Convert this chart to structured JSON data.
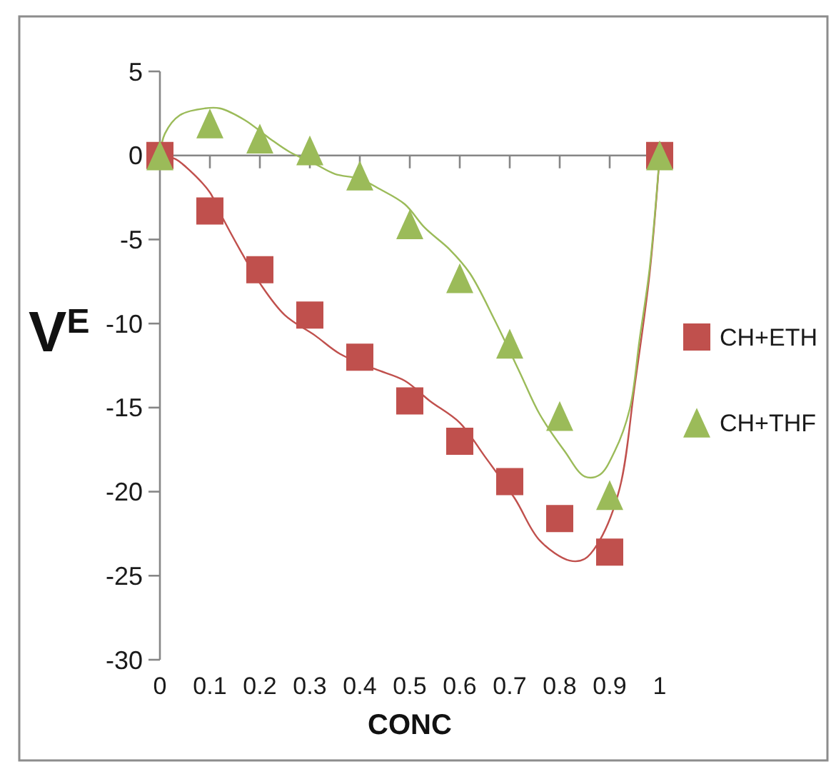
{
  "chart_data": {
    "type": "scatter",
    "xlabel": "CONC",
    "ylabel": "V$^{E}$",
    "xlim": [
      0,
      1
    ],
    "ylim": [
      -30,
      5
    ],
    "xticks": [
      0,
      0.1,
      0.2,
      0.3,
      0.4,
      0.5,
      0.6,
      0.7,
      0.8,
      0.9,
      1
    ],
    "yticks": [
      -30,
      -25,
      -20,
      -15,
      -10,
      -5,
      0,
      5
    ],
    "legend": "right",
    "series": [
      {
        "name": "CH+ETH",
        "marker": "square",
        "color": "#c0504d",
        "x": [
          0,
          0.1,
          0.2,
          0.3,
          0.4,
          0.5,
          0.6,
          0.7,
          0.8,
          0.9,
          1
        ],
        "values": [
          0,
          -3.3,
          -6.8,
          -9.5,
          -12.0,
          -14.6,
          -17.0,
          -19.4,
          -21.6,
          -23.6,
          0
        ]
      },
      {
        "name": "CH+THF",
        "marker": "triangle",
        "color": "#9bbb59",
        "x": [
          0,
          0.1,
          0.2,
          0.3,
          0.4,
          0.5,
          0.6,
          0.7,
          0.8,
          0.9,
          1
        ],
        "values": [
          0,
          1.9,
          1.0,
          0.3,
          -1.2,
          -4.1,
          -7.3,
          -11.2,
          -15.5,
          -20.2,
          0
        ]
      },
      {
        "type": "line",
        "color": "#c0504d",
        "x": [
          0,
          0.03,
          0.06,
          0.1,
          0.12,
          0.16,
          0.2,
          0.25,
          0.31,
          0.36,
          0.43,
          0.49,
          0.54,
          0.6,
          0.65,
          0.71,
          0.76,
          0.82,
          0.85,
          0.88,
          0.92,
          0.95,
          0.98,
          1
        ],
        "values": [
          0,
          -0.2,
          -0.9,
          -2.2,
          -3.4,
          -5.6,
          -7.6,
          -9.5,
          -10.7,
          -11.8,
          -12.7,
          -13.4,
          -14.6,
          -15.9,
          -17.9,
          -20.4,
          -22.9,
          -24.1,
          -24.0,
          -22.9,
          -19.8,
          -13.7,
          -7.0,
          0
        ]
      },
      {
        "type": "line",
        "color": "#9bbb59",
        "x": [
          0,
          0.01,
          0.04,
          0.09,
          0.12,
          0.17,
          0.22,
          0.26,
          0.31,
          0.35,
          0.4,
          0.44,
          0.49,
          0.53,
          0.58,
          0.62,
          0.67,
          0.72,
          0.76,
          0.81,
          0.85,
          0.88,
          0.91,
          0.94,
          0.96,
          0.98,
          1
        ],
        "values": [
          0,
          1.3,
          2.4,
          2.8,
          2.8,
          2.1,
          1.0,
          0.2,
          -0.5,
          -1.1,
          -1.4,
          -2.0,
          -2.9,
          -4.3,
          -5.6,
          -7.0,
          -9.8,
          -12.9,
          -15.4,
          -17.6,
          -19.1,
          -19.0,
          -17.6,
          -15.1,
          -10.9,
          -6.7,
          0
        ]
      }
    ]
  }
}
